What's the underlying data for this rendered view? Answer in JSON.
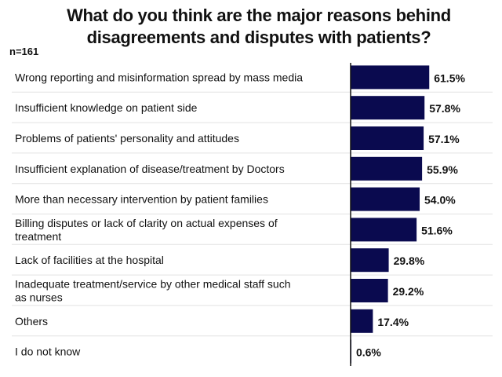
{
  "chart_data": {
    "type": "bar",
    "orientation": "horizontal",
    "title": "What do you think are the major reasons behind disagreements and disputes with patients?",
    "title_lines": [
      "What do you think are the major reasons behind",
      "disagreements and disputes with patients?"
    ],
    "sample_size": "n=161",
    "xlabel": "",
    "ylabel": "",
    "xlim": [
      0,
      100
    ],
    "grid": false,
    "legend": "none",
    "bar_color": "#0a0a4f",
    "categories": [
      [
        "Wrong reporting and misinformation spread by mass media"
      ],
      [
        "Insufficient knowledge on patient side"
      ],
      [
        "Problems of patients' personality and attitudes"
      ],
      [
        "Insufficient explanation of disease/treatment by Doctors"
      ],
      [
        "More than necessary intervention by patient families"
      ],
      [
        "Billing disputes or lack of clarity on actual expenses of",
        "treatment"
      ],
      [
        "Lack of facilities at the hospital"
      ],
      [
        "Inadequate treatment/service by other medical staff such",
        "as nurses"
      ],
      [
        "Others"
      ],
      [
        "I do not know"
      ]
    ],
    "values": [
      61.5,
      57.8,
      57.1,
      55.9,
      54.0,
      51.6,
      29.8,
      29.2,
      17.4,
      0.6
    ],
    "value_labels": [
      "61.5%",
      "57.8%",
      "57.1%",
      "55.9%",
      "54.0%",
      "51.6%",
      "29.8%",
      "29.2%",
      "17.4%",
      "0.6%"
    ]
  }
}
